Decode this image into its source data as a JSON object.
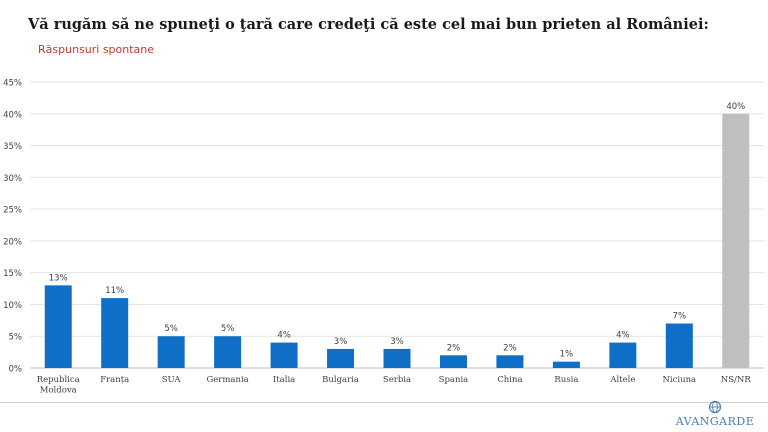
{
  "chart_data": {
    "type": "bar",
    "title": "Vă rugăm să ne spuneţi o ţară care credeţi că este cel mai bun prieten al României:",
    "subtitle": "Răspunsuri spontane",
    "categories": [
      [
        "Republica",
        "Moldova"
      ],
      [
        "Franța"
      ],
      [
        "SUA"
      ],
      [
        "Germania"
      ],
      [
        "Italia"
      ],
      [
        "Bulgaria"
      ],
      [
        "Serbia"
      ],
      [
        "Spania"
      ],
      [
        "China"
      ],
      [
        "Rusia"
      ],
      [
        "Altele"
      ],
      [
        "Niciuna"
      ],
      [
        "NS/NR"
      ]
    ],
    "values": [
      13,
      11,
      5,
      5,
      4,
      3,
      3,
      2,
      2,
      1,
      4,
      7,
      40
    ],
    "value_labels": [
      "13%",
      "11%",
      "5%",
      "5%",
      "4%",
      "3%",
      "3%",
      "2%",
      "2%",
      "1%",
      "4%",
      "7%",
      "40%"
    ],
    "ylim": [
      0,
      45
    ],
    "yticks": [
      0,
      5,
      10,
      15,
      20,
      25,
      30,
      35,
      40,
      45
    ],
    "ytick_labels": [
      "0%",
      "5%",
      "10%",
      "15%",
      "20%",
      "25%",
      "30%",
      "35%",
      "40%",
      "45%"
    ],
    "grid": true,
    "bar_colors": [
      "#0f6fc6",
      "#0f6fc6",
      "#0f6fc6",
      "#0f6fc6",
      "#0f6fc6",
      "#0f6fc6",
      "#0f6fc6",
      "#0f6fc6",
      "#0f6fc6",
      "#0f6fc6",
      "#0f6fc6",
      "#0f6fc6",
      "#bfbfbf"
    ]
  },
  "brand": {
    "logo_text": "AVANGARDE",
    "color": "#4a7fb0"
  }
}
